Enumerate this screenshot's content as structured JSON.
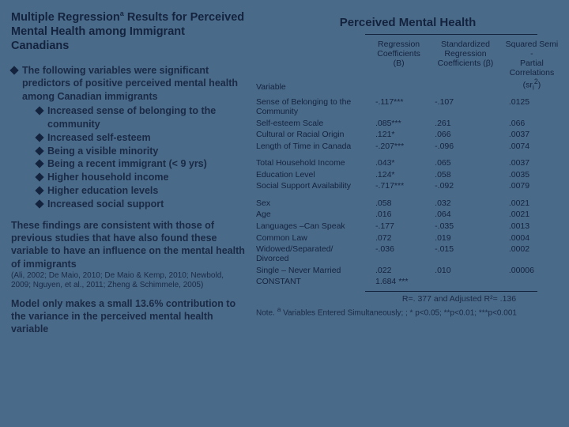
{
  "title_html": "Multiple Regression<sup>a</sup> Results for Perceived Mental Health among Immigrant Canadians",
  "findings_intro": "The following variables were significant predictors of positive perceived mental health among Canadian immigrants",
  "bullets": [
    "Increased sense of belonging to the community",
    "Increased self-esteem",
    "Being a visible minority",
    "Being a recent immigrant (< 9 yrs)",
    "Higher household income",
    "Higher education levels",
    "Increased social support"
  ],
  "consistency": "These findings are consistent with those of previous studies that have also found these variable to have an influence on the mental health of immigrants",
  "refs": "(Ali, 2002; De Maio, 2010; De Maio & Kemp, 2010; Newbold, 2009; Nguyen, et al., 2011; Zheng & Schimmele, 2005)",
  "model_note": "Model only makes a small 13.6% contribution to the variance in the perceived mental health variable",
  "table": {
    "title": "Perceived Mental Health",
    "headers": {
      "var": "Variable",
      "c1": "Regression Coefficients (B)",
      "c2": "Standardized Regression Coefficients (β)",
      "c3_html": "Squared Semi<br>-<br>Partial Correlations (sr<sub>i</sub><sup>2</sup>)"
    },
    "groups": [
      [
        {
          "v": "Sense of Belonging to the Community",
          "b": "-.117***",
          "beta": "-.107",
          "sr": ".0125"
        },
        {
          "v": "Self-esteem Scale",
          "b": ".085***",
          "beta": ".261",
          "sr": ".066"
        },
        {
          "v": "Cultural or Racial Origin",
          "b": ".121*",
          "beta": ".066",
          "sr": ".0037"
        },
        {
          "v": "Length of Time in Canada",
          "b": "-.207***",
          "beta": "-.096",
          "sr": ".0074"
        }
      ],
      [
        {
          "v": "Total Household Income",
          "b": ".043*",
          "beta": ".065",
          "sr": ".0037"
        },
        {
          "v": "Education Level",
          "b": ".124*",
          "beta": ".058",
          "sr": ".0035"
        },
        {
          "v": "Social Support Availability",
          "b": "-.717***",
          "beta": "-.092",
          "sr": ".0079"
        }
      ],
      [
        {
          "v": "Sex",
          "b": ".058",
          "beta": ".032",
          "sr": ".0021"
        },
        {
          "v": "Age",
          "b": ".016",
          "beta": ".064",
          "sr": ".0021"
        },
        {
          "v": "Languages –Can Speak",
          "b": "-.177",
          "beta": "-.035",
          "sr": ".0013"
        },
        {
          "v": "Common Law",
          "b": ".072",
          "beta": ".019",
          "sr": ".0004"
        },
        {
          "v": "Widowed/Separated/ Divorced",
          "b": "-.036",
          "beta": "-.015",
          "sr": ".0002"
        },
        {
          "v": "Single – Never Married",
          "b": ".022",
          "beta": ".010",
          "sr": ".00006"
        },
        {
          "v": "CONSTANT",
          "b": "1.684 ***",
          "beta": "",
          "sr": ""
        }
      ]
    ],
    "r2": "R=. 377  and Adjusted R²= .136",
    "note_html": "Note. <sup>a</sup> Variables Entered Simultaneously; ; * p<0.05;  **p<0.01;  ***p<0.001"
  },
  "colors": {
    "background": "#4a6a8a",
    "text": "#14233d"
  }
}
